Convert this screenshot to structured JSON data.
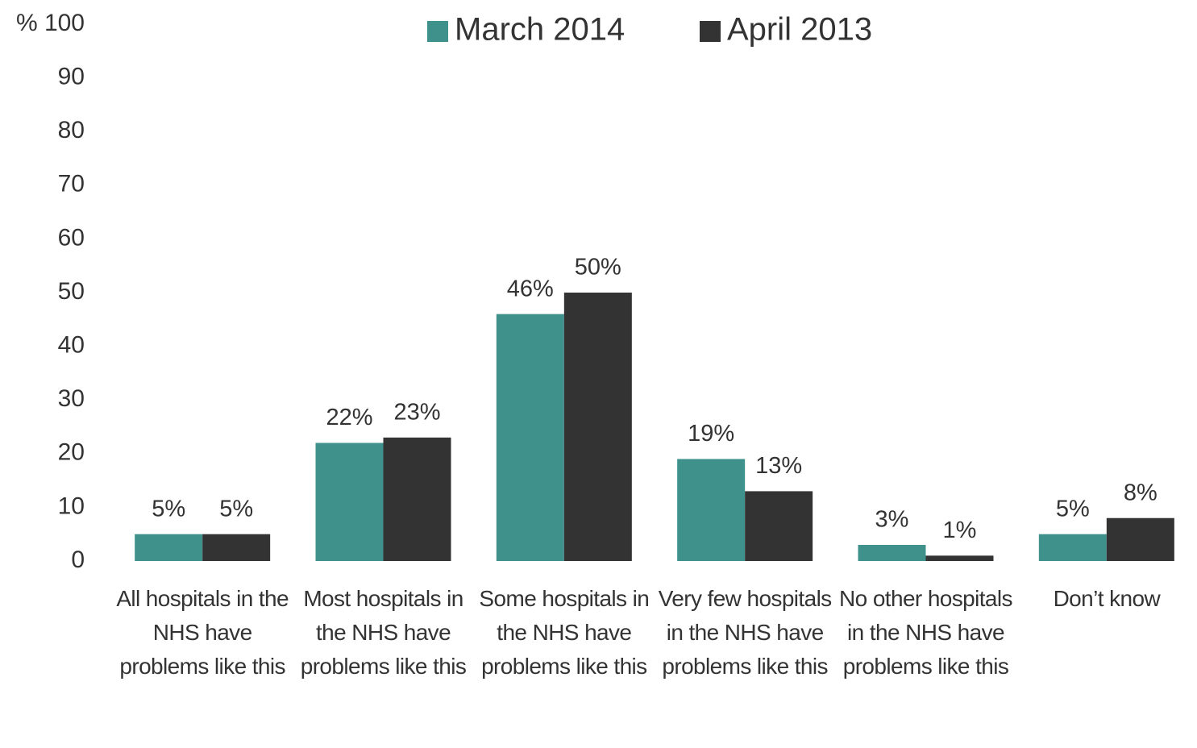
{
  "chart_data": {
    "type": "bar",
    "y_label": "%",
    "categories": [
      "All hospitals in the NHS have problems like this",
      "Most hospitals in the NHS have problems like this",
      "Some hospitals in the NHS have problems like this",
      "Very few hospitals in the NHS have problems like this",
      "No other hospitals in the NHS have problems like this",
      "Don’t know"
    ],
    "series": [
      {
        "name": "March 2014",
        "color": "#3f918c",
        "values": [
          5,
          22,
          46,
          19,
          3,
          5
        ],
        "value_labels": [
          "5%",
          "22%",
          "46%",
          "19%",
          "3%",
          "5%"
        ]
      },
      {
        "name": "April 2013",
        "color": "#333333",
        "values": [
          5,
          23,
          50,
          13,
          1,
          8
        ],
        "value_labels": [
          "5%",
          "23%",
          "50%",
          "13%",
          "1%",
          "8%"
        ]
      }
    ],
    "ylim": [
      0,
      100
    ],
    "yticks": [
      0,
      10,
      20,
      30,
      40,
      50,
      60,
      70,
      80,
      90,
      100
    ],
    "grid": false,
    "legend": "top"
  }
}
